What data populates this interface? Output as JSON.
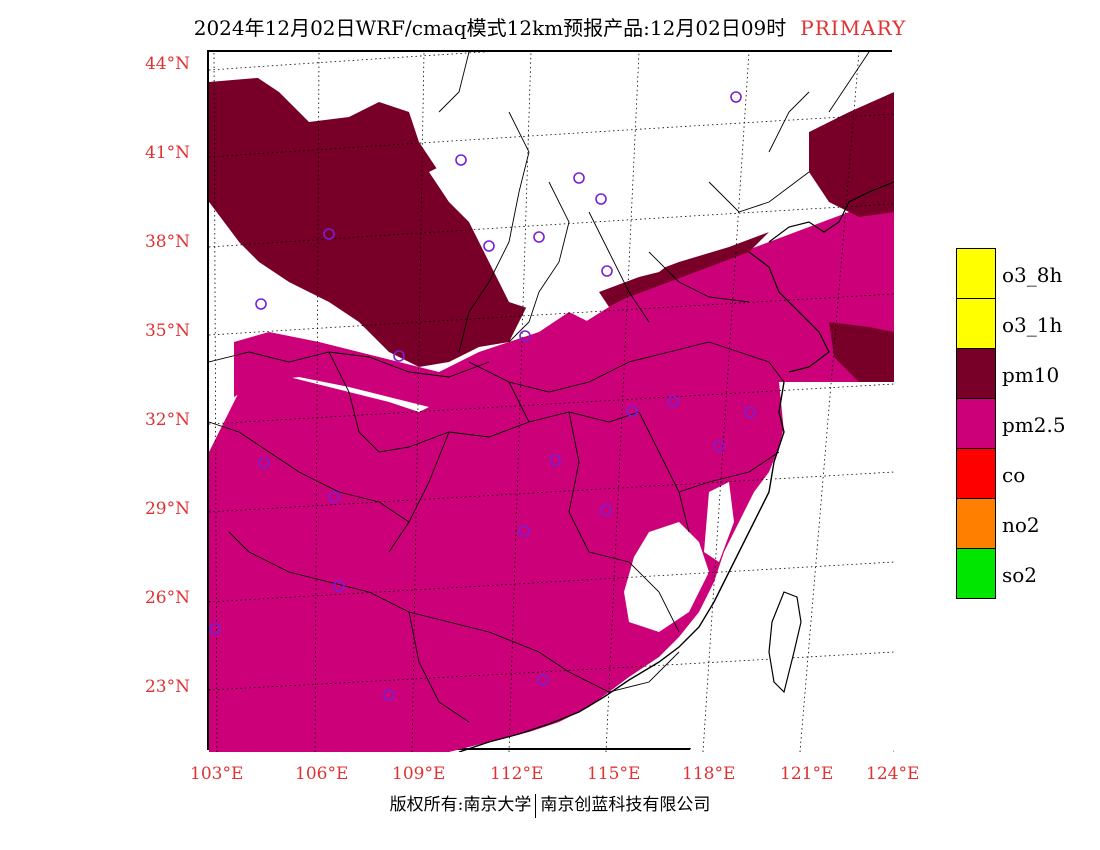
{
  "title": {
    "main": "2024年12月02日WRF/cmaq模式12km预报产品:12月02日09时",
    "type": "PRIMARY"
  },
  "lat_labels": [
    "44°N",
    "41°N",
    "38°N",
    "35°N",
    "32°N",
    "29°N",
    "26°N",
    "23°N"
  ],
  "lon_labels": [
    "103°E",
    "106°E",
    "109°E",
    "112°E",
    "115°E",
    "118°E",
    "121°E",
    "124°E"
  ],
  "legend": [
    {
      "label": "o3_8h",
      "color": "#ffff00"
    },
    {
      "label": "o3_1h",
      "color": "#ffff00"
    },
    {
      "label": "pm10",
      "color": "#780028"
    },
    {
      "label": "pm2.5",
      "color": "#cc0078"
    },
    {
      "label": "co",
      "color": "#ff0000"
    },
    {
      "label": "no2",
      "color": "#ff7f00"
    },
    {
      "label": "so2",
      "color": "#00e600"
    }
  ],
  "footer": {
    "left": "版权所有:南京大学",
    "right": "南京创蓝科技有限公司"
  },
  "colors": {
    "pm10": "#780028",
    "pm25": "#cc0078",
    "station_marker": "#7a1fd6",
    "label_red": "#e03232"
  }
}
